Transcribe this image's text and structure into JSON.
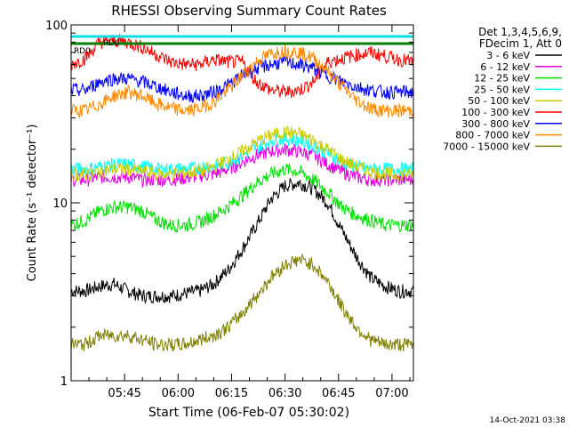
{
  "chart_data": {
    "type": "line",
    "title": "RHESSI Observing Summary Count Rates",
    "xlabel": "Start Time (06-Feb-07 05:30:02)",
    "ylabel": "Count Rate (s⁻¹ detector⁻¹)",
    "yscale": "log",
    "ylim": [
      1,
      100
    ],
    "xlim_minutes": [
      0,
      96
    ],
    "x_ticks": [
      {
        "label": "05:45",
        "min": 15
      },
      {
        "label": "06:00",
        "min": 30
      },
      {
        "label": "06:15",
        "min": 45
      },
      {
        "label": "06:30",
        "min": 60
      },
      {
        "label": "06:45",
        "min": 75
      },
      {
        "label": "07:00",
        "min": 90
      }
    ],
    "y_ticks": [
      {
        "label": "1",
        "value": 1
      },
      {
        "label": "10",
        "value": 10
      },
      {
        "label": "100",
        "value": 100
      }
    ],
    "legend_header": [
      "Det 1,3,4,5,6,9,",
      "FDecim 1, Att 0"
    ],
    "legend_position": "right",
    "series": [
      {
        "name": "3 - 6 keV",
        "color": "#000000",
        "values": [
          3.2,
          3.2,
          3.4,
          3.5,
          3.2,
          3.0,
          3.0,
          3.0,
          3.1,
          3.2,
          3.5,
          4.2,
          5.5,
          7.5,
          10.5,
          12.5,
          13.0,
          12.0,
          10.0,
          7.0,
          5.0,
          3.8,
          3.4,
          3.2,
          3.2
        ]
      },
      {
        "name": "6 - 12 keV",
        "color": "#e000e0",
        "values": [
          13.5,
          13.5,
          14.0,
          14.0,
          14.0,
          13.5,
          13.5,
          13.5,
          13.8,
          14.2,
          14.5,
          15.5,
          17.0,
          18.5,
          19.5,
          20.0,
          19.5,
          18.5,
          16.5,
          15.0,
          14.0,
          13.5,
          13.5,
          13.5,
          13.5
        ]
      },
      {
        "name": "12 - 25 keV",
        "color": "#00e000",
        "values": [
          7.5,
          8.0,
          9.0,
          9.5,
          9.5,
          9.0,
          8.0,
          7.5,
          7.5,
          7.8,
          8.5,
          9.5,
          11.0,
          13.0,
          14.5,
          15.5,
          15.0,
          13.5,
          11.5,
          9.5,
          8.5,
          8.0,
          7.5,
          7.5,
          7.5
        ]
      },
      {
        "name": "25 - 50 keV",
        "color": "#00ffff",
        "values": [
          15.5,
          15.5,
          16.0,
          16.5,
          16.5,
          16.0,
          15.5,
          15.5,
          15.5,
          15.8,
          16.0,
          17.0,
          18.5,
          20.5,
          22.5,
          23.0,
          22.5,
          21.0,
          19.0,
          17.0,
          16.0,
          15.5,
          15.5,
          15.5,
          15.5
        ]
      },
      {
        "name": "50 - 100 keV",
        "color": "#cccc00",
        "values": [
          14.5,
          14.5,
          15.0,
          15.5,
          15.5,
          15.0,
          14.5,
          14.5,
          14.8,
          15.0,
          16.0,
          17.5,
          19.5,
          22.0,
          24.0,
          25.0,
          24.5,
          22.5,
          20.0,
          17.5,
          16.0,
          15.0,
          14.5,
          14.5,
          14.5
        ]
      },
      {
        "name": "100 - 300 keV",
        "color": "#ff0000",
        "values": [
          60,
          65,
          80,
          82,
          80,
          75,
          68,
          62,
          60,
          60,
          64,
          62,
          62,
          48,
          43,
          42,
          43,
          48,
          62,
          65,
          68,
          70,
          67,
          64,
          62
        ]
      },
      {
        "name": "300 - 800 keV",
        "color": "#0000ff",
        "values": [
          43,
          43,
          48,
          50,
          50,
          48,
          45,
          42,
          40,
          40,
          42,
          46,
          52,
          57,
          60,
          62,
          60,
          57,
          52,
          48,
          45,
          43,
          42,
          42,
          42
        ]
      },
      {
        "name": "800 - 7000 keV",
        "color": "#ff8800",
        "values": [
          33,
          33,
          36,
          40,
          42,
          40,
          36,
          34,
          33,
          34,
          37,
          43,
          52,
          62,
          69,
          72,
          70,
          65,
          55,
          45,
          38,
          34,
          33,
          33,
          33
        ]
      },
      {
        "name": "7000 - 15000 keV",
        "color": "#808000",
        "values": [
          1.6,
          1.6,
          1.8,
          1.8,
          1.8,
          1.7,
          1.6,
          1.6,
          1.6,
          1.7,
          1.8,
          2.0,
          2.4,
          3.0,
          3.8,
          4.5,
          4.8,
          4.5,
          3.6,
          2.6,
          2.0,
          1.7,
          1.6,
          1.6,
          1.6
        ]
      }
    ],
    "series_x_minutes": [
      0,
      4,
      8,
      12,
      16,
      20,
      24,
      28,
      32,
      36,
      40,
      44,
      48,
      52,
      56,
      60,
      64,
      68,
      72,
      76,
      80,
      84,
      88,
      92,
      96
    ],
    "status_bars": [
      {
        "label": "RD0",
        "color": "#00e0e0"
      },
      {
        "label": "RD0",
        "color": "#008000"
      }
    ]
  },
  "timestamp": "14-Oct-2021 03:38"
}
